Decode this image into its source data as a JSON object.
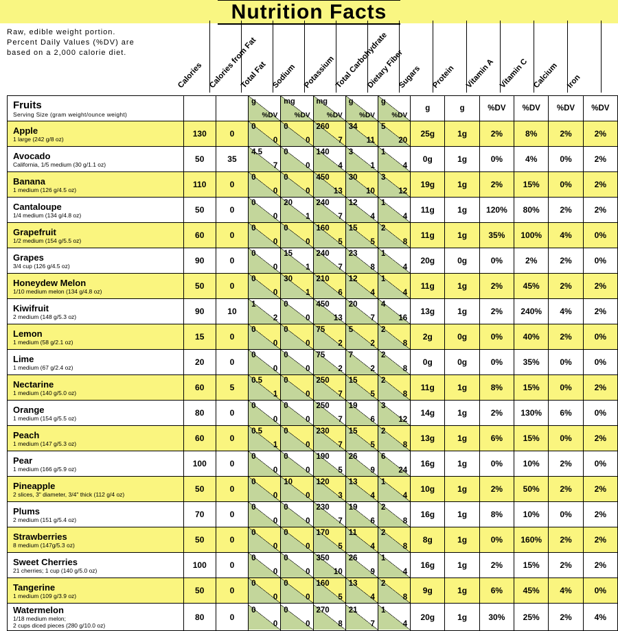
{
  "title": "Nutrition Facts",
  "note_line1": "Raw, edible weight portion.",
  "note_line2": "Percent Daily Values (%DV) are",
  "note_line3": "based on a 2,000 calorie diet.",
  "colors": {
    "banner_bg": "#f9f682",
    "row_highlight": "#faf57f",
    "dv_triangle": "#c3d69b",
    "border": "#000000",
    "text": "#000000"
  },
  "columns": {
    "headers": [
      "Calories",
      "Calories from Fat",
      "Total Fat",
      "Sodium",
      "Potassium",
      "Total Carbohydrate",
      "Dietary Fiber",
      "Sugars",
      "Protein",
      "Vitamin A",
      "Vitamin C",
      "Calcium",
      "Iron"
    ],
    "split_units_top": [
      "g",
      "mg",
      "mg",
      "g",
      "g"
    ],
    "dv_label": "%DV",
    "plain_units": [
      "g",
      "g",
      "%DV",
      "%DV",
      "%DV",
      "%DV"
    ]
  },
  "group": {
    "title": "Fruits",
    "sub": "Serving Size (gram weight/ounce weight)"
  },
  "rows": [
    {
      "hl": true,
      "name": "Apple",
      "serv": "1 large (242 g/8 oz)",
      "cal": "130",
      "cff": "0",
      "split": [
        [
          "0",
          "0"
        ],
        [
          "0",
          "0"
        ],
        [
          "260",
          "7"
        ],
        [
          "34",
          "11"
        ],
        [
          "5",
          "20"
        ]
      ],
      "plain": [
        "25g",
        "1g",
        "2%",
        "8%",
        "2%",
        "2%"
      ]
    },
    {
      "hl": false,
      "name": "Avocado",
      "serv": "California, 1/5 medium (30 g/1.1 oz)",
      "cal": "50",
      "cff": "35",
      "split": [
        [
          "4.5",
          "7"
        ],
        [
          "0",
          "0"
        ],
        [
          "140",
          "4"
        ],
        [
          "3",
          "1"
        ],
        [
          "1",
          "4"
        ]
      ],
      "plain": [
        "0g",
        "1g",
        "0%",
        "4%",
        "0%",
        "2%"
      ]
    },
    {
      "hl": true,
      "name": "Banana",
      "serv": "1 medium (126 g/4.5 oz)",
      "cal": "110",
      "cff": "0",
      "split": [
        [
          "0",
          "0"
        ],
        [
          "0",
          "0"
        ],
        [
          "450",
          "13"
        ],
        [
          "30",
          "10"
        ],
        [
          "3",
          "12"
        ]
      ],
      "plain": [
        "19g",
        "1g",
        "2%",
        "15%",
        "0%",
        "2%"
      ]
    },
    {
      "hl": false,
      "name": "Cantaloupe",
      "serv": "1/4 medium (134 g/4.8 oz)",
      "cal": "50",
      "cff": "0",
      "split": [
        [
          "0",
          "0"
        ],
        [
          "20",
          "1"
        ],
        [
          "240",
          "7"
        ],
        [
          "12",
          "4"
        ],
        [
          "1",
          "4"
        ]
      ],
      "plain": [
        "11g",
        "1g",
        "120%",
        "80%",
        "2%",
        "2%"
      ]
    },
    {
      "hl": true,
      "name": "Grapefruit",
      "serv": "1/2 medium (154 g/5.5 oz)",
      "cal": "60",
      "cff": "0",
      "split": [
        [
          "0",
          "0"
        ],
        [
          "0",
          "0"
        ],
        [
          "160",
          "5"
        ],
        [
          "15",
          "5"
        ],
        [
          "2",
          "8"
        ]
      ],
      "plain": [
        "11g",
        "1g",
        "35%",
        "100%",
        "4%",
        "0%"
      ]
    },
    {
      "hl": false,
      "name": "Grapes",
      "serv": "3/4 cup (126 g/4.5 oz)",
      "cal": "90",
      "cff": "0",
      "split": [
        [
          "0",
          "0"
        ],
        [
          "15",
          "1"
        ],
        [
          "240",
          "7"
        ],
        [
          "23",
          "8"
        ],
        [
          "1",
          "4"
        ]
      ],
      "plain": [
        "20g",
        "0g",
        "0%",
        "2%",
        "2%",
        "0%"
      ]
    },
    {
      "hl": true,
      "name": "Honeydew Melon",
      "serv": "1/10 medium melon (134 g/4.8 oz)",
      "cal": "50",
      "cff": "0",
      "split": [
        [
          "0",
          "0"
        ],
        [
          "30",
          "1"
        ],
        [
          "210",
          "6"
        ],
        [
          "12",
          "4"
        ],
        [
          "1",
          "4"
        ]
      ],
      "plain": [
        "11g",
        "1g",
        "2%",
        "45%",
        "2%",
        "2%"
      ]
    },
    {
      "hl": false,
      "name": "Kiwifruit",
      "serv": "2 medium (148 g/5.3 oz)",
      "cal": "90",
      "cff": "10",
      "split": [
        [
          "1",
          "2"
        ],
        [
          "0",
          "0"
        ],
        [
          "450",
          "13"
        ],
        [
          "20",
          "7"
        ],
        [
          "4",
          "16"
        ]
      ],
      "plain": [
        "13g",
        "1g",
        "2%",
        "240%",
        "4%",
        "2%"
      ]
    },
    {
      "hl": true,
      "name": "Lemon",
      "serv": "1 medium (58 g/2.1 oz)",
      "cal": "15",
      "cff": "0",
      "split": [
        [
          "0",
          "0"
        ],
        [
          "0",
          "0"
        ],
        [
          "75",
          "2"
        ],
        [
          "5",
          "2"
        ],
        [
          "2",
          "8"
        ]
      ],
      "plain": [
        "2g",
        "0g",
        "0%",
        "40%",
        "2%",
        "0%"
      ]
    },
    {
      "hl": false,
      "name": "Lime",
      "serv": "1 medium (67 g/2.4 oz)",
      "cal": "20",
      "cff": "0",
      "split": [
        [
          "0",
          "0"
        ],
        [
          "0",
          "0"
        ],
        [
          "75",
          "2"
        ],
        [
          "7",
          "2"
        ],
        [
          "2",
          "8"
        ]
      ],
      "plain": [
        "0g",
        "0g",
        "0%",
        "35%",
        "0%",
        "0%"
      ]
    },
    {
      "hl": true,
      "name": "Nectarine",
      "serv": "1 medium (140 g/5.0 oz)",
      "cal": "60",
      "cff": "5",
      "split": [
        [
          "0.5",
          "1"
        ],
        [
          "0",
          "0"
        ],
        [
          "250",
          "7"
        ],
        [
          "15",
          "5"
        ],
        [
          "2",
          "8"
        ]
      ],
      "plain": [
        "11g",
        "1g",
        "8%",
        "15%",
        "0%",
        "2%"
      ]
    },
    {
      "hl": false,
      "name": "Orange",
      "serv": "1 medium (154 g/5.5 oz)",
      "cal": "80",
      "cff": "0",
      "split": [
        [
          "0",
          "0"
        ],
        [
          "0",
          "0"
        ],
        [
          "250",
          "7"
        ],
        [
          "19",
          "6"
        ],
        [
          "3",
          "12"
        ]
      ],
      "plain": [
        "14g",
        "1g",
        "2%",
        "130%",
        "6%",
        "0%"
      ]
    },
    {
      "hl": true,
      "name": "Peach",
      "serv": "1 medium (147 g/5.3 oz)",
      "cal": "60",
      "cff": "0",
      "split": [
        [
          "0.5",
          "1"
        ],
        [
          "0",
          "0"
        ],
        [
          "230",
          "7"
        ],
        [
          "15",
          "5"
        ],
        [
          "2",
          "8"
        ]
      ],
      "plain": [
        "13g",
        "1g",
        "6%",
        "15%",
        "0%",
        "2%"
      ]
    },
    {
      "hl": false,
      "name": "Pear",
      "serv": "1 medium (166 g/5.9 oz)",
      "cal": "100",
      "cff": "0",
      "split": [
        [
          "0",
          "0"
        ],
        [
          "0",
          "0"
        ],
        [
          "190",
          "5"
        ],
        [
          "26",
          "9"
        ],
        [
          "6",
          "24"
        ]
      ],
      "plain": [
        "16g",
        "1g",
        "0%",
        "10%",
        "2%",
        "0%"
      ]
    },
    {
      "hl": true,
      "name": "Pineapple",
      "serv": "2 slices, 3\" diameter, 3/4\" thick (112 g/4 oz)",
      "cal": "50",
      "cff": "0",
      "split": [
        [
          "0",
          "0"
        ],
        [
          "10",
          "0"
        ],
        [
          "120",
          "3"
        ],
        [
          "13",
          "4"
        ],
        [
          "1",
          "4"
        ]
      ],
      "plain": [
        "10g",
        "1g",
        "2%",
        "50%",
        "2%",
        "2%"
      ]
    },
    {
      "hl": false,
      "name": "Plums",
      "serv": "2 medium (151 g/5.4 oz)",
      "cal": "70",
      "cff": "0",
      "split": [
        [
          "0",
          "0"
        ],
        [
          "0",
          "0"
        ],
        [
          "230",
          "7"
        ],
        [
          "19",
          "6"
        ],
        [
          "2",
          "8"
        ]
      ],
      "plain": [
        "16g",
        "1g",
        "8%",
        "10%",
        "0%",
        "2%"
      ]
    },
    {
      "hl": true,
      "name": "Strawberries",
      "serv": "8 medium (147g/5.3 oz)",
      "cal": "50",
      "cff": "0",
      "split": [
        [
          "0",
          "0"
        ],
        [
          "0",
          "0"
        ],
        [
          "170",
          "5"
        ],
        [
          "11",
          "4"
        ],
        [
          "2",
          "8"
        ]
      ],
      "plain": [
        "8g",
        "1g",
        "0%",
        "160%",
        "2%",
        "2%"
      ]
    },
    {
      "hl": false,
      "name": "Sweet Cherries",
      "serv": "21 cherries; 1 cup (140 g/5.0 oz)",
      "cal": "100",
      "cff": "0",
      "split": [
        [
          "0",
          "0"
        ],
        [
          "0",
          "0"
        ],
        [
          "350",
          "10"
        ],
        [
          "26",
          "9"
        ],
        [
          "1",
          "4"
        ]
      ],
      "plain": [
        "16g",
        "1g",
        "2%",
        "15%",
        "2%",
        "2%"
      ]
    },
    {
      "hl": true,
      "name": "Tangerine",
      "serv": "1 medium (109 g/3.9 oz)",
      "cal": "50",
      "cff": "0",
      "split": [
        [
          "0",
          "0"
        ],
        [
          "0",
          "0"
        ],
        [
          "160",
          "5"
        ],
        [
          "13",
          "4"
        ],
        [
          "2",
          "8"
        ]
      ],
      "plain": [
        "9g",
        "1g",
        "6%",
        "45%",
        "4%",
        "0%"
      ]
    },
    {
      "hl": false,
      "name": "Watermelon",
      "serv": "1/18 medium melon;\n2 cups diced pieces (280 g/10.0 oz)",
      "cal": "80",
      "cff": "0",
      "split": [
        [
          "0",
          "0"
        ],
        [
          "0",
          "0"
        ],
        [
          "270",
          "8"
        ],
        [
          "21",
          "7"
        ],
        [
          "1",
          "4"
        ]
      ],
      "plain": [
        "20g",
        "1g",
        "30%",
        "25%",
        "2%",
        "4%"
      ]
    }
  ]
}
